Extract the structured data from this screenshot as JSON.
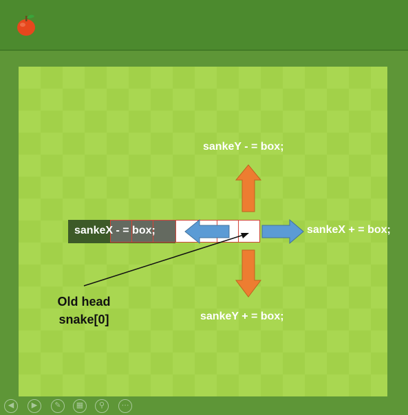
{
  "labels": {
    "up": "sankeY - = box;",
    "down": "sankeY + = box;",
    "right": "sankeX + = box;",
    "left": "sankeX - = box;",
    "old_head_line1": "Old head",
    "old_head_line2": "snake[0]"
  },
  "colors": {
    "field_light": "#a9d751",
    "field_dark": "#a2d149",
    "border_green": "#5e9637",
    "orange_arrow": "#ed7d31",
    "blue_arrow": "#5b9bd5",
    "cell_outline": "#d0453a"
  },
  "icons": {
    "apple": "apple-icon",
    "toolbar": [
      "back-icon",
      "forward-icon",
      "pen-icon",
      "slides-icon",
      "zoom-icon",
      "more-icon"
    ]
  }
}
